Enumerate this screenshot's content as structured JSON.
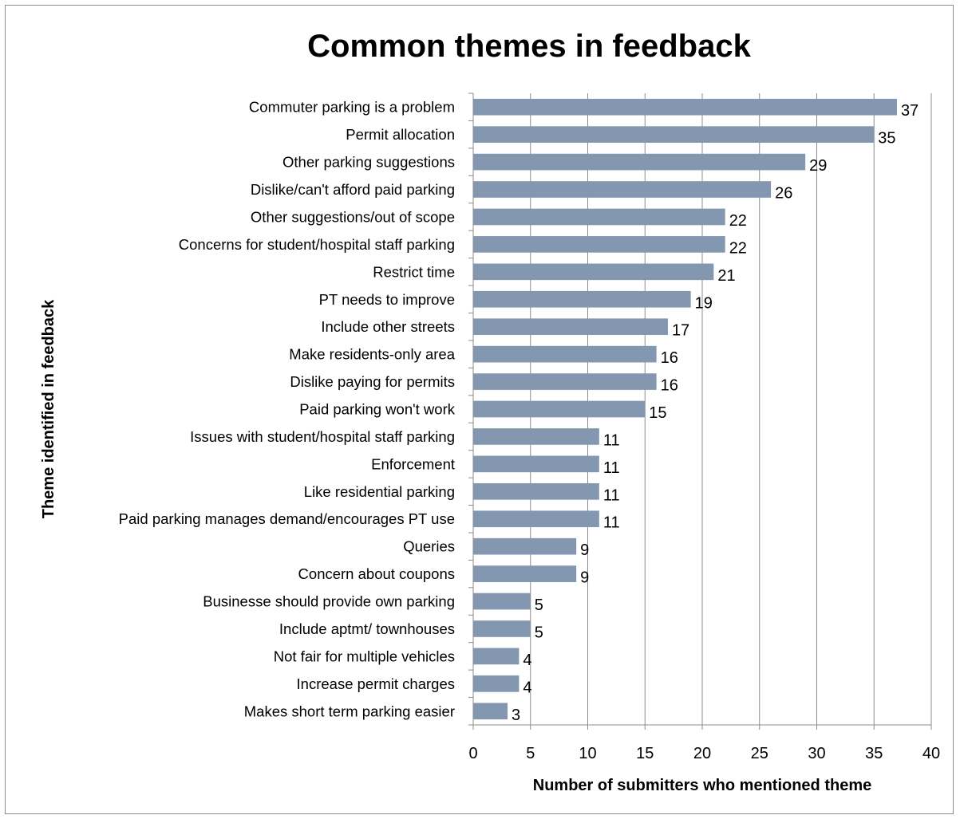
{
  "chart_data": {
    "type": "bar",
    "orientation": "horizontal",
    "title": "Common themes in feedback",
    "xlabel": "Number of submitters who mentioned theme",
    "ylabel": "Theme identified in feedback",
    "xlim": [
      0,
      40
    ],
    "xticks": [
      0,
      5,
      10,
      15,
      20,
      25,
      30,
      35,
      40
    ],
    "grid": "vertical",
    "legend": "none",
    "bar_color": "#8497b0",
    "categories": [
      "Commuter parking is a problem",
      "Permit allocation",
      "Other parking suggestions",
      "Dislike/can't afford  paid parking",
      "Other suggestions/out of scope",
      "Concerns for student/hospital staff parking",
      "Restrict time",
      "PT needs to improve",
      "Include other streets",
      "Make residents-only area",
      "Dislike paying for permits",
      "Paid parking won't work",
      "Issues with student/hospital staff parking",
      "Enforcement",
      "Like residential parking",
      "Paid parking manages demand/encourages PT use",
      "Queries",
      "Concern about coupons",
      "Businesse should provide own parking",
      "Include aptmt/ townhouses",
      "Not fair for multiple vehicles",
      "Increase permit charges",
      "Makes short term parking easier"
    ],
    "values": [
      37,
      35,
      29,
      26,
      22,
      22,
      21,
      19,
      17,
      16,
      16,
      15,
      11,
      11,
      11,
      11,
      9,
      9,
      5,
      5,
      4,
      4,
      3
    ]
  }
}
